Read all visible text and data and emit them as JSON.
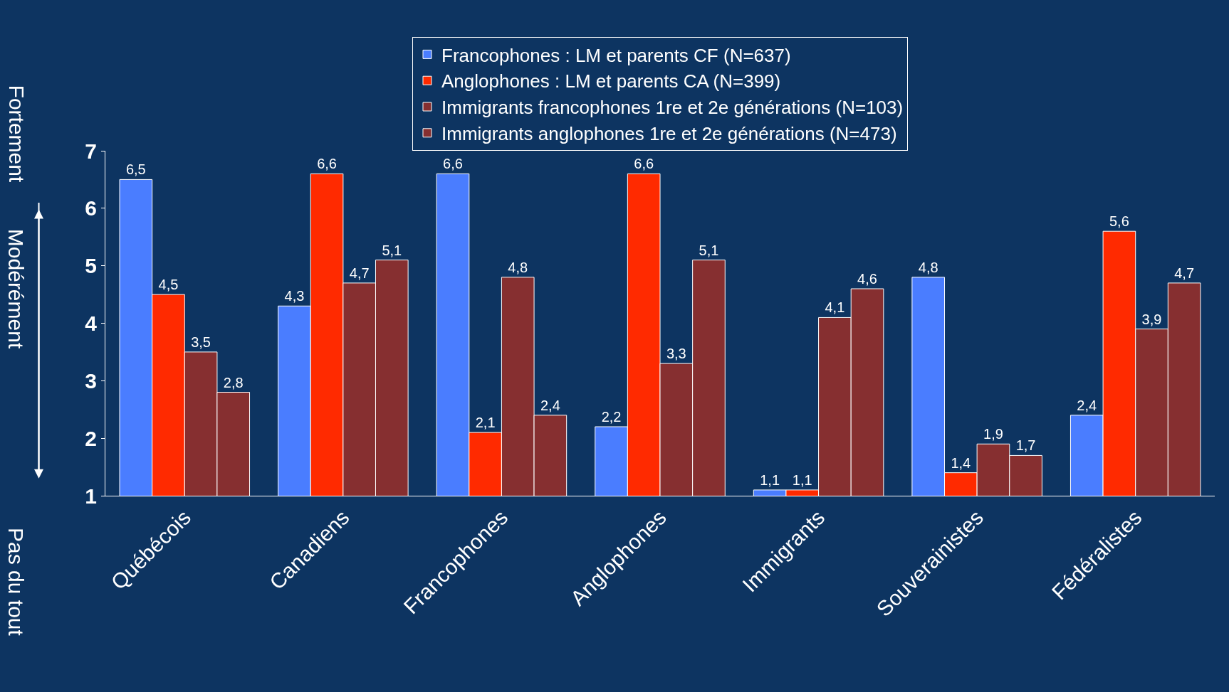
{
  "chart_data": {
    "type": "bar",
    "categories": [
      "Québécois",
      "Canadiens",
      "Francophones",
      "Anglophones",
      "Immigrants",
      "Souverainistes",
      "Fédéralistes"
    ],
    "series": [
      {
        "name": "Francophones : LM et parents CF (N=637)",
        "color": "#4a7dff",
        "values": [
          6.5,
          4.3,
          6.6,
          2.2,
          1.1,
          4.8,
          2.4
        ],
        "value_labels": [
          "6,5",
          "4,3",
          "6,6",
          "2,2",
          "1,1",
          "4,8",
          "2,4"
        ]
      },
      {
        "name": "Anglophones : LM et parents CA (N=399)",
        "color": "#ff2a00",
        "values": [
          4.5,
          6.6,
          2.1,
          6.6,
          1.1,
          1.4,
          5.6
        ],
        "value_labels": [
          "4,5",
          "6,6",
          "2,1",
          "6,6",
          "1,1",
          "1,4",
          "5,6"
        ]
      },
      {
        "name": "Immigrants francophones 1re et 2e générations (N=103)",
        "color": "#862f30",
        "values": [
          3.5,
          4.7,
          4.8,
          3.3,
          4.1,
          1.9,
          3.9
        ],
        "value_labels": [
          "3,5",
          "4,7",
          "4,8",
          "3,3",
          "4,1",
          "1,9",
          "3,9"
        ]
      },
      {
        "name": "Immigrants anglophones 1re et 2e générations (N=473)",
        "color": "#862f30",
        "values": [
          2.8,
          5.1,
          2.4,
          5.1,
          4.6,
          1.7,
          4.7
        ],
        "value_labels": [
          "2,8",
          "5,1",
          "2,4",
          "5,1",
          "4,6",
          "1,7",
          "4,7"
        ]
      }
    ],
    "ylim": [
      1,
      7
    ],
    "yticks": [
      1,
      2,
      3,
      4,
      5,
      6,
      7
    ],
    "grid": false,
    "legend": "top",
    "annotations": [
      "Fortement",
      "Modérément",
      "Pas du tout"
    ]
  }
}
